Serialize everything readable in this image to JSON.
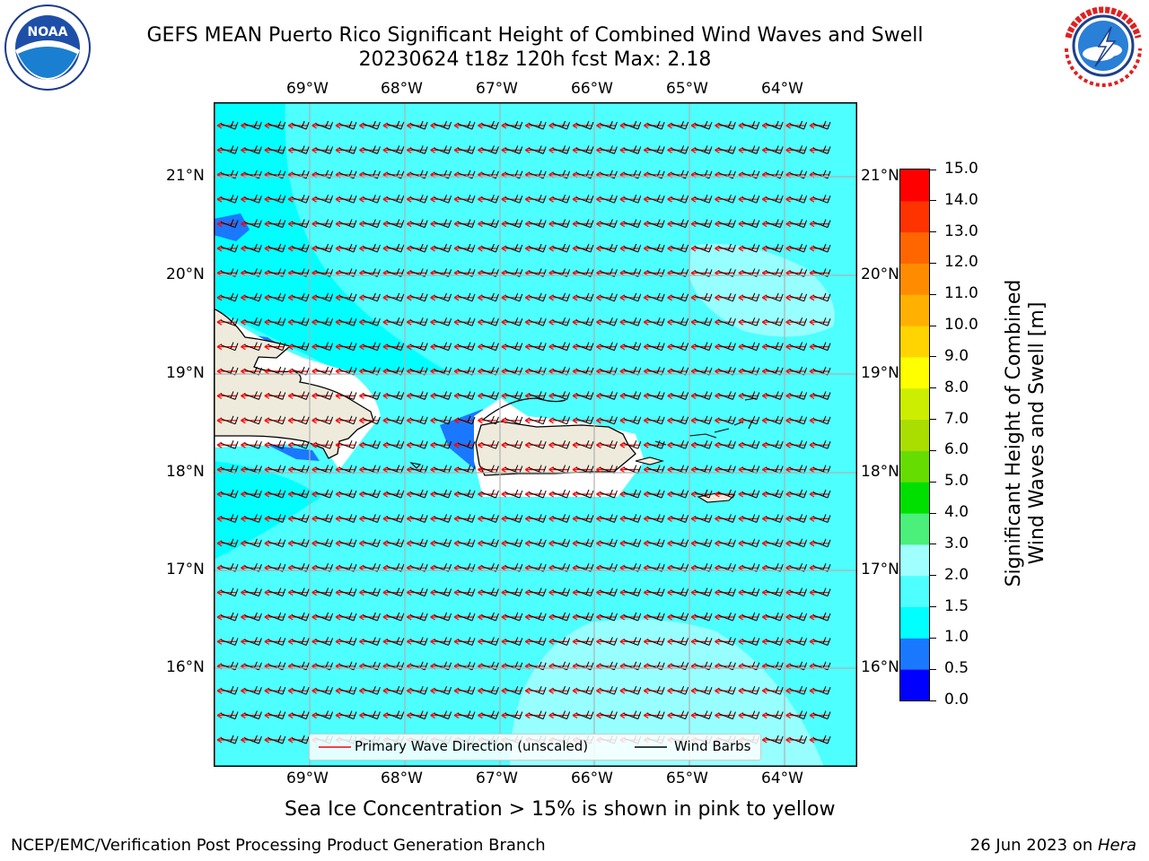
{
  "title": {
    "line1": "GEFS MEAN Puerto Rico Significant Height of Combined Wind Waves and Swell",
    "line2": "20230624 t18z 120h fcst   Max: 2.18"
  },
  "logos": {
    "noaa_text": "NOAA",
    "noaa_ring": "NATIONAL OCEANIC AND ATMOSPHERIC ADMINISTRATION · U.S. DEPARTMENT OF COMMERCE",
    "nws_ring": "NATIONAL WEATHER SERVICE"
  },
  "map": {
    "lon_labels": [
      "69°W",
      "68°W",
      "67°W",
      "66°W",
      "65°W",
      "64°W"
    ],
    "lat_labels": [
      "21°N",
      "20°N",
      "19°N",
      "18°N",
      "17°N",
      "16°N"
    ],
    "background_color": "#4dffff"
  },
  "legend": {
    "wave_direction": "Primary Wave Direction (unscaled)",
    "wind_barbs": "Wind Barbs",
    "wave_color": "#ff0000",
    "barb_color": "#000000"
  },
  "colorbar": {
    "title_line1": "Significant Height of Combined",
    "title_line2": "Wind Waves and Swell [m]",
    "ticks": [
      "0.0",
      "0.5",
      "1.0",
      "1.5",
      "2.0",
      "3.0",
      "4.0",
      "5.0",
      "6.0",
      "7.0",
      "8.0",
      "9.0",
      "10.0",
      "11.0",
      "12.0",
      "13.0",
      "14.0",
      "15.0"
    ],
    "colors": [
      "#0000ff",
      "#1a78ff",
      "#00ffff",
      "#4dffff",
      "#a0ffff",
      "#4af07a",
      "#00e000",
      "#66dd00",
      "#aadd00",
      "#ccee00",
      "#ffff00",
      "#ffd400",
      "#ffb000",
      "#ff8c00",
      "#ff6600",
      "#ff3300",
      "#ff0000"
    ]
  },
  "caption": "Sea Ice Concentration > 15% is shown in pink to yellow",
  "footer": {
    "left": "NCEP/EMC/Verification Post Processing Product Generation Branch",
    "right_prefix": "26 Jun 2023 on ",
    "right_host": "Hera"
  }
}
